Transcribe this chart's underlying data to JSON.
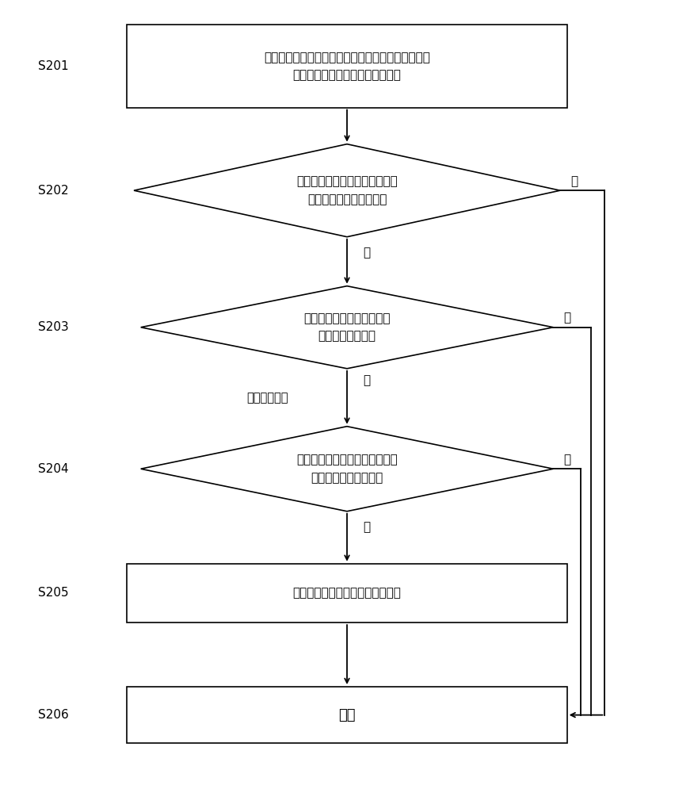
{
  "bg_color": "#ffffff",
  "line_color": "#000000",
  "text_color": "#000000",
  "fig_width": 8.76,
  "fig_height": 10.0,
  "s201_label": "接收发送方终端发送的搜索信令，所述搜索信令中包\n括中继传输标识和中继节点标识符",
  "s202_label": "搜索信令中的中继传输标识表示\n搜索信令允许被中继转发",
  "s203_label": "搜索信令被中继转发的当前\n次数大于预设次数",
  "s204_label": "中继节点标识符与搜索过滤器中\n包含的标识符参数匹配",
  "s205_label": "将所述搜索信令转发至接收方终端",
  "s206_label": "结束",
  "increment_label": "当前次数加一",
  "step_labels": [
    "S201",
    "S202",
    "S203",
    "S204",
    "S205",
    "S206"
  ],
  "yes_text": "是",
  "no_text": "否"
}
